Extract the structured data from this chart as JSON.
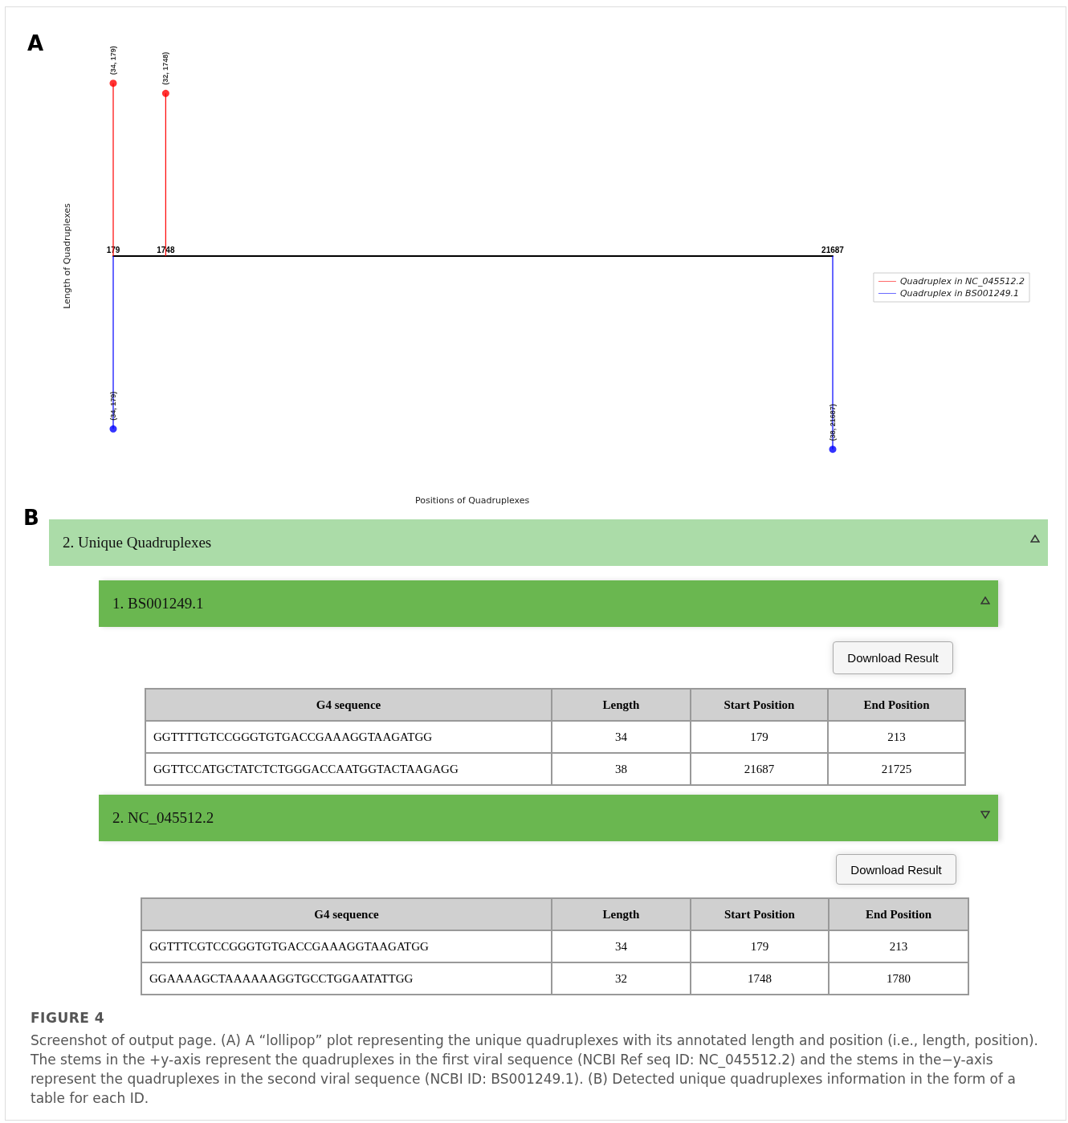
{
  "chart_data": [
    {
      "type": "lollipop",
      "title": "A",
      "xlabel": "Positions of Quadruplexes",
      "ylabel": "Length of Quadruplexes",
      "xlim": [
        179,
        21687
      ],
      "xticks": [
        179,
        1748,
        21687
      ],
      "tick_labels": "x",
      "legend": "right",
      "marker": "circle",
      "grid": false,
      "series": [
        {
          "name": "Quadruplex in NC_045512.2",
          "color": "#ff0000",
          "x": [
            179,
            1748
          ],
          "values": [
            34,
            32
          ],
          "value_labels": [
            "(34, 179)",
            "(32, 1748)"
          ]
        },
        {
          "name": "Quadruplex in BS001249.1",
          "color": "#0000ff",
          "x": [
            179,
            21687
          ],
          "values": [
            -34,
            -38
          ],
          "value_labels": [
            "(34, 179)",
            "(38, 21687)"
          ]
        }
      ]
    },
    {
      "type": "other",
      "title": "B",
      "subtitle": "2. Unique Quadruplexes"
    },
    {
      "type": "other",
      "title": "1. BS001249.1",
      "annotations": [
        "Download Result"
      ],
      "categories": [
        "G4 sequence",
        "Length",
        "Start Position",
        "End Position"
      ],
      "cell_labels": [
        [
          "GGTTTTGTCCGGGTGTGACCGAAAGGTAAGATGG",
          "34",
          "179",
          "213"
        ],
        [
          "GGTTCCATGCTATCTCTGGGACCAATGGTACTAAGAGG",
          "38",
          "21687",
          "21725"
        ]
      ]
    },
    {
      "type": "other",
      "title": "2. NC_045512.2",
      "annotations": [
        "Download Result"
      ],
      "categories": [
        "G4 sequence",
        "Length",
        "Start Position",
        "End Position"
      ],
      "cell_labels": [
        [
          "GGTTTCGTCCGGGTGTGACCGAAAGGTAAGATGG",
          "34",
          "179",
          "213"
        ],
        [
          "GGAAAAGCTAAAAAAGGTGCCTGGAATATTGG",
          "32",
          "1748",
          "1780"
        ]
      ]
    },
    {
      "type": "other",
      "title": "FIGURE 4",
      "annotations": [
        "Screenshot of output page. (A) A “lollipop” plot representing the unique quadruplexes with its annotated length and position (i.e., length, position). The stems in the +y-axis represent the quadruplexes in the first viral sequence (NCBI Ref seq ID: NC_045512.2) and the stems in the−y-axis represent the quadruplexes in the second viral sequence (NCBI ID: BS001249.1). (B) Detected unique quadruplexes information in the form of a table for each ID."
      ]
    }
  ]
}
